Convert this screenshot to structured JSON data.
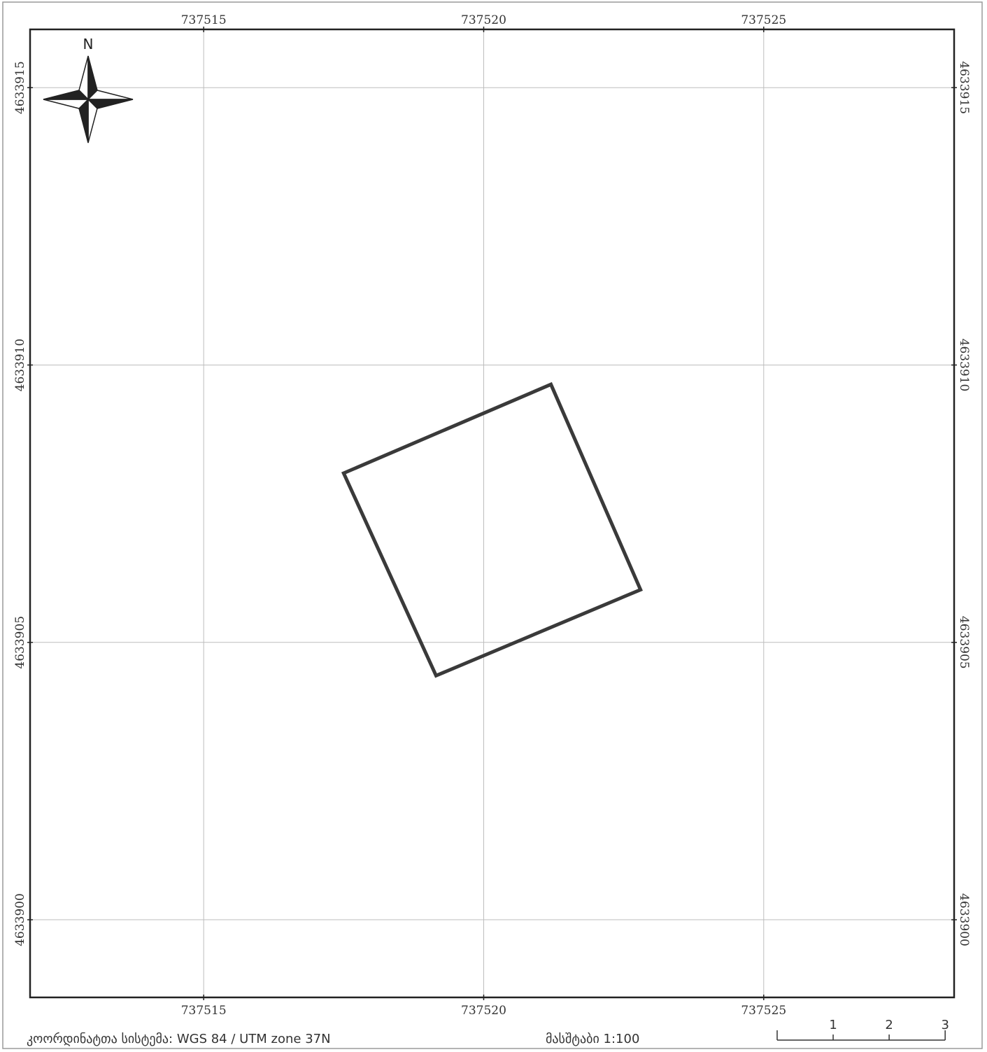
{
  "map": {
    "coordinate_system_label": "კოორდინატთა სისტემა: WGS 84 / UTM zone 37N",
    "scale_label": "მასშტაბი 1:100",
    "north_arrow": {
      "icon": "compass-rose-icon",
      "label": "N"
    },
    "easting_ticks": [
      {
        "value": 737515,
        "label": "737515"
      },
      {
        "value": 737520,
        "label": "737520"
      },
      {
        "value": 737525,
        "label": "737525"
      }
    ],
    "northing_ticks": [
      {
        "value": 4633915,
        "label": "4633915"
      },
      {
        "value": 4633910,
        "label": "4633910"
      },
      {
        "value": 4633905,
        "label": "4633905"
      },
      {
        "value": 4633900,
        "label": "4633900"
      }
    ],
    "extent": {
      "easting": [
        737511.9,
        737528.4
      ],
      "northing": [
        4633898.6,
        4633916.05
      ]
    },
    "scale_bar": {
      "ticks": [
        {
          "value": 0,
          "label": ""
        },
        {
          "value": 1,
          "label": "1"
        },
        {
          "value": 2,
          "label": "2"
        },
        {
          "value": 3,
          "label": "3"
        }
      ]
    },
    "parcel": {
      "vertices": [
        [
          737517.5,
          4633908.05
        ],
        [
          737521.2,
          4633909.65
        ],
        [
          737522.8,
          4633905.95
        ],
        [
          737519.15,
          4633904.4
        ]
      ]
    },
    "colors": {
      "frame": "#222222",
      "grid": "#bdbdbd",
      "parcel_outline": "#3a3a3a",
      "text": "#333333"
    }
  }
}
